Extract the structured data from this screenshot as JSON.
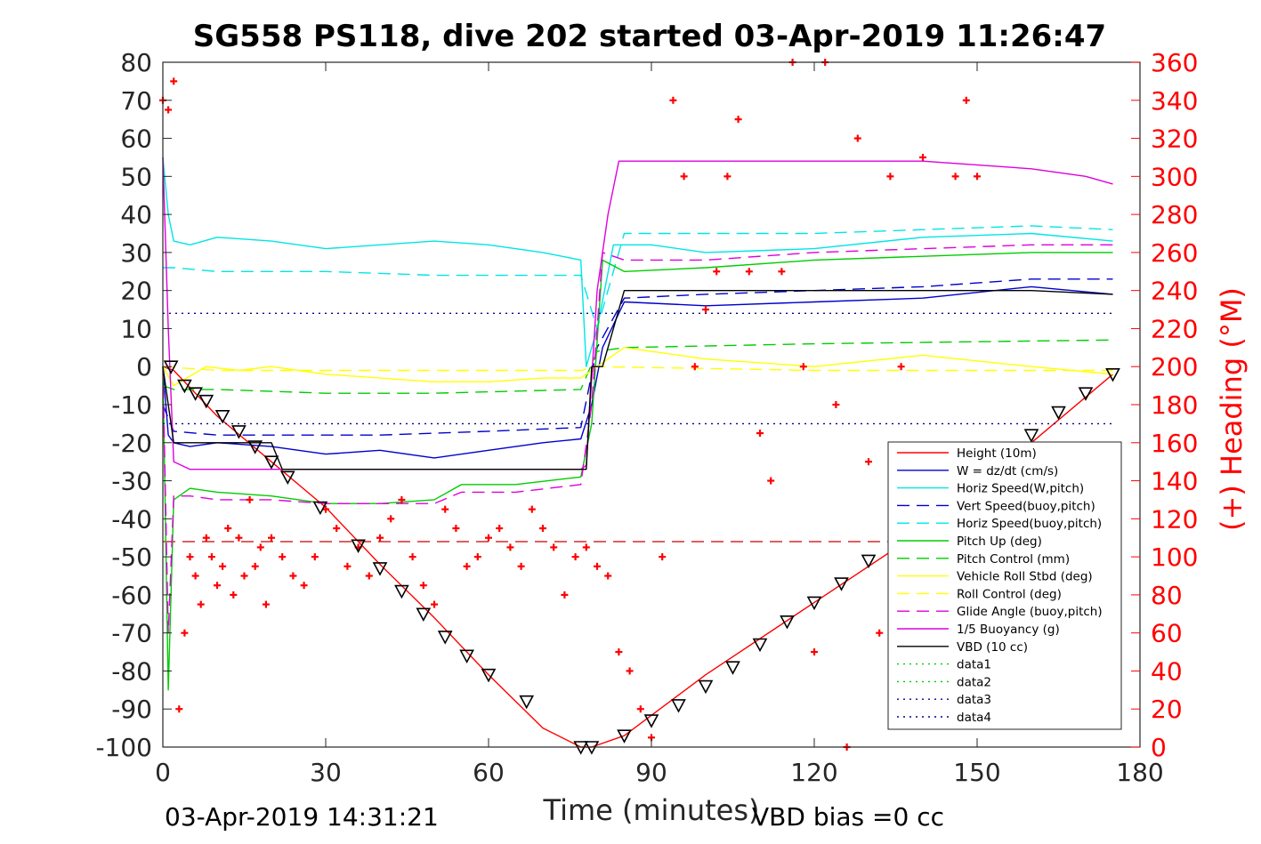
{
  "chart_data": {
    "type": "line",
    "title": "SG558 PS118, dive 202 started 03-Apr-2019 11:26:47",
    "xlabel": "Time (minutes)",
    "ylabel": "",
    "ylabel_right": "(+) Heading (°M)",
    "xlim": [
      0,
      180
    ],
    "ylim": [
      -100,
      80
    ],
    "ylim_right": [
      0,
      360
    ],
    "xticks": [
      0,
      30,
      60,
      90,
      120,
      150,
      180
    ],
    "yticks": [
      -100,
      -90,
      -80,
      -70,
      -60,
      -50,
      -40,
      -30,
      -20,
      -10,
      0,
      10,
      20,
      30,
      40,
      50,
      60,
      70,
      80
    ],
    "yticks_right": [
      0,
      20,
      40,
      60,
      80,
      100,
      120,
      140,
      160,
      180,
      200,
      220,
      240,
      260,
      280,
      300,
      320,
      340,
      360
    ],
    "footer_left": "03-Apr-2019 14:31:21",
    "footer_right": "VBD bias =0 cc",
    "legend_position": "lower-right",
    "grid": false,
    "series": [
      {
        "name": "Height (10m)",
        "color": "#ff0000",
        "style": "solid",
        "x": [
          0,
          2,
          10,
          20,
          30,
          40,
          50,
          60,
          70,
          77,
          79,
          85,
          100,
          120,
          140,
          160,
          175
        ],
        "y": [
          0,
          -1,
          -13,
          -25,
          -37,
          -52,
          -66,
          -81,
          -95,
          -100,
          -100,
          -97,
          -81,
          -62,
          -43,
          -20,
          -2
        ]
      },
      {
        "name": "W = dz/dt (cm/s)",
        "color": "#0000cc",
        "style": "solid",
        "x": [
          0,
          1,
          2,
          5,
          10,
          20,
          30,
          40,
          50,
          60,
          70,
          77,
          79,
          81,
          85,
          100,
          120,
          140,
          160,
          175
        ],
        "y": [
          0,
          -18,
          -20,
          -21,
          -20,
          -21,
          -23,
          -22,
          -24,
          -22,
          -20,
          -19,
          -10,
          5,
          17,
          16,
          17,
          18,
          21,
          19
        ]
      },
      {
        "name": "Horiz Speed(W,pitch)",
        "color": "#00e5e5",
        "style": "solid",
        "x": [
          0,
          1,
          2,
          5,
          10,
          20,
          30,
          40,
          50,
          60,
          70,
          77,
          78,
          80,
          83,
          90,
          100,
          120,
          140,
          160,
          175
        ],
        "y": [
          55,
          40,
          33,
          32,
          34,
          33,
          31,
          32,
          33,
          32,
          30,
          28,
          0,
          10,
          32,
          32,
          30,
          31,
          34,
          35,
          33
        ]
      },
      {
        "name": "Vert Speed(buoy,pitch)",
        "color": "#0000cc",
        "style": "dashed",
        "x": [
          0,
          2,
          10,
          20,
          40,
          60,
          77,
          80,
          85,
          100,
          120,
          140,
          160,
          175
        ],
        "y": [
          -10,
          -17,
          -18,
          -18,
          -18,
          -17,
          -16,
          5,
          18,
          19,
          20,
          21,
          23,
          23
        ]
      },
      {
        "name": "Horiz Speed(buoy,pitch)",
        "color": "#00e5e5",
        "style": "dashed",
        "x": [
          0,
          2,
          10,
          30,
          50,
          60,
          77,
          80,
          85,
          100,
          120,
          140,
          160,
          175
        ],
        "y": [
          26,
          26,
          25,
          25,
          24,
          24,
          24,
          10,
          35,
          35,
          35,
          36,
          37,
          36
        ]
      },
      {
        "name": "Pitch Up (deg)",
        "color": "#00cc00",
        "style": "solid",
        "x": [
          0,
          1,
          2,
          5,
          10,
          20,
          30,
          40,
          50,
          55,
          65,
          77,
          79,
          81,
          85,
          100,
          120,
          140,
          160,
          175
        ],
        "y": [
          0,
          -85,
          -35,
          -32,
          -33,
          -34,
          -36,
          -36,
          -35,
          -31,
          -31,
          -29,
          -15,
          28,
          25,
          26,
          28,
          29,
          30,
          30
        ]
      },
      {
        "name": "Pitch Control (mm)",
        "color": "#00cc00",
        "style": "dashed",
        "x": [
          0,
          2,
          10,
          30,
          50,
          77,
          80,
          85,
          120,
          175
        ],
        "y": [
          -5,
          -6,
          -6,
          -7,
          -7,
          -6,
          4,
          5,
          6,
          7
        ]
      },
      {
        "name": "Vehicle Roll Stbd (deg)",
        "color": "#ffff00",
        "style": "solid",
        "x": [
          0,
          2,
          8,
          14,
          20,
          30,
          40,
          50,
          60,
          70,
          77,
          80,
          85,
          100,
          120,
          140,
          160,
          175
        ],
        "y": [
          0,
          -5,
          0,
          -1,
          0,
          -2,
          -3,
          -4,
          -4,
          -3,
          -3,
          0,
          5,
          2,
          0,
          3,
          0,
          -2
        ]
      },
      {
        "name": "Roll Control (deg)",
        "color": "#ffff00",
        "style": "dashed",
        "x": [
          0,
          10,
          40,
          77,
          80,
          120,
          175
        ],
        "y": [
          0,
          -1,
          -1,
          -1,
          0,
          -1,
          -1
        ]
      },
      {
        "name": "Glide Angle (buoy,pitch)",
        "color": "#dd00dd",
        "style": "dashed",
        "x": [
          0,
          1,
          2,
          5,
          10,
          20,
          30,
          40,
          50,
          55,
          65,
          77,
          79,
          81,
          85,
          100,
          120,
          140,
          160,
          175
        ],
        "y": [
          0,
          -70,
          -34,
          -34,
          -35,
          -35,
          -36,
          -36,
          -36,
          -33,
          -33,
          -31,
          -10,
          30,
          28,
          28,
          30,
          31,
          32,
          32
        ]
      },
      {
        "name": "1/5 Buoyancy (g)",
        "color": "#dd00dd",
        "style": "solid",
        "x": [
          0,
          1,
          2,
          5,
          20,
          40,
          60,
          77,
          78,
          80,
          82,
          84,
          100,
          120,
          140,
          160,
          170,
          175
        ],
        "y": [
          55,
          10,
          -25,
          -27,
          -27,
          -27,
          -27,
          -27,
          -26,
          20,
          40,
          54,
          54,
          54,
          54,
          52,
          50,
          48
        ]
      },
      {
        "name": "VBD (10 cc)",
        "color": "#000000",
        "style": "solid",
        "x": [
          0,
          2,
          5,
          20,
          22,
          40,
          77,
          78,
          79,
          81,
          83,
          85,
          100,
          120,
          140,
          160,
          175
        ],
        "y": [
          0,
          -20,
          -20,
          -20,
          -27,
          -27,
          -27,
          -27,
          0,
          0,
          10,
          20,
          20,
          20,
          20,
          20,
          19
        ]
      },
      {
        "name": "data1",
        "color": "#00cc00",
        "style": "dotted",
        "x": [],
        "y": []
      },
      {
        "name": "data2",
        "color": "#00cc00",
        "style": "dotted",
        "x": [],
        "y": []
      },
      {
        "name": "data3",
        "color": "#00008b",
        "style": "dotted",
        "x": [
          0,
          175
        ],
        "y": [
          -15,
          -15
        ]
      },
      {
        "name": "data4",
        "color": "#00008b",
        "style": "dotted",
        "x": [
          0,
          175
        ],
        "y": [
          14,
          14
        ]
      }
    ],
    "reference_lines": [
      {
        "color": "#cc0000",
        "style": "dashed",
        "x": [
          0,
          175
        ],
        "y": [
          -46,
          -46
        ]
      }
    ],
    "heading_points": {
      "color": "#ff0000",
      "marker": "+",
      "axis": "right",
      "x": [
        0,
        1,
        2,
        3,
        4,
        5,
        6,
        7,
        8,
        9,
        10,
        11,
        12,
        13,
        14,
        15,
        16,
        17,
        18,
        19,
        20,
        22,
        24,
        26,
        28,
        30,
        32,
        34,
        36,
        38,
        40,
        42,
        44,
        46,
        48,
        50,
        52,
        54,
        56,
        58,
        60,
        62,
        64,
        66,
        68,
        70,
        72,
        74,
        76,
        78,
        80,
        82,
        84,
        86,
        88,
        90,
        92,
        94,
        96,
        98,
        100,
        102,
        104,
        106,
        108,
        110,
        112,
        114,
        116,
        118,
        120,
        122,
        124,
        126,
        128,
        130,
        132,
        134,
        136,
        138,
        140,
        142,
        144,
        146,
        148,
        150
      ],
      "y": [
        340,
        335,
        350,
        20,
        60,
        100,
        90,
        75,
        110,
        100,
        85,
        95,
        115,
        80,
        110,
        90,
        130,
        95,
        105,
        75,
        110,
        100,
        90,
        85,
        100,
        125,
        115,
        95,
        105,
        90,
        110,
        120,
        130,
        100,
        85,
        75,
        125,
        115,
        95,
        100,
        110,
        115,
        105,
        95,
        125,
        115,
        105,
        80,
        100,
        105,
        95,
        90,
        50,
        40,
        20,
        5,
        100,
        340,
        300,
        200,
        230,
        250,
        300,
        330,
        250,
        165,
        140,
        250,
        360,
        200,
        50,
        360,
        180,
        0,
        320,
        150,
        60,
        300,
        200,
        70,
        310,
        140,
        20,
        300,
        340,
        300
      ]
    },
    "vbd_markers": {
      "marker": "triangle-down",
      "color": "#000000",
      "x": [
        1.5,
        4,
        6,
        8,
        11,
        14,
        17,
        20,
        23,
        29,
        36,
        40,
        44,
        48,
        52,
        56,
        60,
        67,
        77,
        79,
        85,
        90,
        95,
        100,
        105,
        110,
        115,
        120,
        125,
        130,
        135,
        140,
        145,
        150,
        155,
        160,
        165,
        170,
        175
      ],
      "y": [
        0,
        -5,
        -7,
        -9,
        -13,
        -17,
        -21,
        -25,
        -29,
        -37,
        -47,
        -53,
        -59,
        -65,
        -71,
        -76,
        -81,
        -88,
        -100,
        -100,
        -97,
        -93,
        -89,
        -84,
        -79,
        -73,
        -67,
        -62,
        -57,
        -51,
        -46,
        -41,
        -35,
        -30,
        -24,
        -18,
        -12,
        -7,
        -2
      ]
    },
    "legend": [
      {
        "label": "Height (10m)",
        "color": "#ff0000",
        "style": "solid"
      },
      {
        "label": "W = dz/dt (cm/s)",
        "color": "#0000cc",
        "style": "solid"
      },
      {
        "label": "Horiz Speed(W,pitch)",
        "color": "#00e5e5",
        "style": "solid"
      },
      {
        "label": "Vert Speed(buoy,pitch)",
        "color": "#0000cc",
        "style": "dashed"
      },
      {
        "label": "Horiz Speed(buoy,pitch)",
        "color": "#00e5e5",
        "style": "dashed"
      },
      {
        "label": "Pitch Up (deg)",
        "color": "#00cc00",
        "style": "solid"
      },
      {
        "label": "Pitch Control (mm)",
        "color": "#00cc00",
        "style": "dashed"
      },
      {
        "label": "Vehicle Roll Stbd (deg)",
        "color": "#ffff00",
        "style": "solid"
      },
      {
        "label": "Roll Control (deg)",
        "color": "#ffff00",
        "style": "dashed"
      },
      {
        "label": "Glide Angle (buoy,pitch)",
        "color": "#dd00dd",
        "style": "dashed"
      },
      {
        "label": "1/5 Buoyancy (g)",
        "color": "#dd00dd",
        "style": "solid"
      },
      {
        "label": "VBD (10 cc)",
        "color": "#000000",
        "style": "solid"
      },
      {
        "label": "data1",
        "color": "#00cc00",
        "style": "dotted"
      },
      {
        "label": "data2",
        "color": "#00cc00",
        "style": "dotted"
      },
      {
        "label": "data3",
        "color": "#00008b",
        "style": "dotted"
      },
      {
        "label": "data4",
        "color": "#00008b",
        "style": "dotted"
      }
    ]
  }
}
